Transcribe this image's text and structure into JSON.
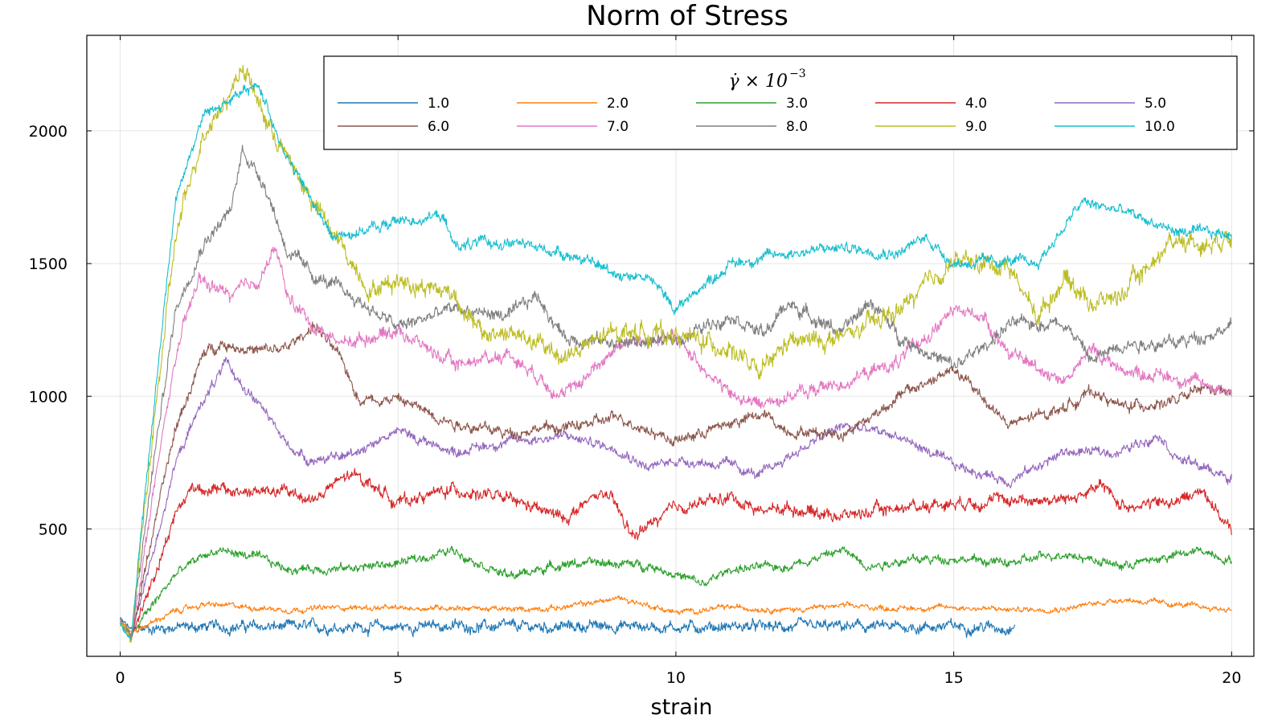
{
  "chart_data": {
    "type": "line",
    "title": "Norm of Stress",
    "xlabel": "strain",
    "ylabel": "",
    "xlim": [
      -0.6,
      20.4
    ],
    "ylim": [
      20,
      2360
    ],
    "xticks": [
      0,
      5,
      10,
      15,
      20
    ],
    "xtick_labels": [
      "0",
      "5",
      "10",
      "15",
      "20"
    ],
    "yticks": [
      500,
      1000,
      1500,
      2000
    ],
    "ytick_labels": [
      "500",
      "1000",
      "1500",
      "2000"
    ],
    "grid": true,
    "legend": {
      "placement": "top-right",
      "title": "γ̇ × 10",
      "title_exponent": "−3",
      "columns": 5
    },
    "series": [
      {
        "name": "1.0",
        "color": "#1f77b4",
        "noise": 20,
        "points": [
          [
            0,
            160
          ],
          [
            0.2,
            120
          ],
          [
            0.5,
            125
          ],
          [
            1,
            130
          ],
          [
            2,
            132
          ],
          [
            3,
            130
          ],
          [
            4,
            132
          ],
          [
            5,
            130
          ],
          [
            6,
            135
          ],
          [
            7,
            130
          ],
          [
            8,
            132
          ],
          [
            9,
            135
          ],
          [
            10,
            130
          ],
          [
            11,
            133
          ],
          [
            12,
            130
          ],
          [
            13,
            132
          ],
          [
            14,
            130
          ],
          [
            15,
            133
          ],
          [
            16,
            130
          ],
          [
            16.1,
            130
          ]
        ]
      },
      {
        "name": "2.0",
        "color": "#ff7f0e",
        "noise": 10,
        "points": [
          [
            0,
            160
          ],
          [
            0.2,
            110
          ],
          [
            0.6,
            150
          ],
          [
            1,
            190
          ],
          [
            1.5,
            215
          ],
          [
            2,
            210
          ],
          [
            3,
            195
          ],
          [
            4,
            205
          ],
          [
            5,
            200
          ],
          [
            6,
            205
          ],
          [
            7,
            195
          ],
          [
            8,
            205
          ],
          [
            9,
            240
          ],
          [
            10,
            185
          ],
          [
            11,
            205
          ],
          [
            12,
            195
          ],
          [
            13,
            210
          ],
          [
            14,
            200
          ],
          [
            15,
            205
          ],
          [
            16,
            195
          ],
          [
            17,
            200
          ],
          [
            18,
            235
          ],
          [
            19,
            215
          ],
          [
            20,
            195
          ]
        ]
      },
      {
        "name": "3.0",
        "color": "#2ca02c",
        "noise": 16,
        "points": [
          [
            0,
            150
          ],
          [
            0.2,
            100
          ],
          [
            0.5,
            190
          ],
          [
            1,
            330
          ],
          [
            1.5,
            400
          ],
          [
            1.8,
            420
          ],
          [
            2.5,
            390
          ],
          [
            3,
            350
          ],
          [
            4,
            350
          ],
          [
            5,
            370
          ],
          [
            6,
            420
          ],
          [
            7,
            320
          ],
          [
            8,
            370
          ],
          [
            9,
            370
          ],
          [
            9.6,
            360
          ],
          [
            10.5,
            290
          ],
          [
            11,
            350
          ],
          [
            12,
            360
          ],
          [
            13,
            420
          ],
          [
            13.5,
            360
          ],
          [
            14,
            380
          ],
          [
            15,
            390
          ],
          [
            16,
            370
          ],
          [
            17,
            410
          ],
          [
            18,
            360
          ],
          [
            19,
            400
          ],
          [
            19.5,
            420
          ],
          [
            20,
            380
          ]
        ]
      },
      {
        "name": "4.0",
        "color": "#d62728",
        "noise": 22,
        "points": [
          [
            0,
            150
          ],
          [
            0.2,
            95
          ],
          [
            0.6,
            320
          ],
          [
            1,
            560
          ],
          [
            1.3,
            660
          ],
          [
            2,
            640
          ],
          [
            3,
            640
          ],
          [
            3.5,
            610
          ],
          [
            4,
            690
          ],
          [
            4.3,
            700
          ],
          [
            5,
            600
          ],
          [
            6,
            650
          ],
          [
            7,
            610
          ],
          [
            8,
            540
          ],
          [
            8.7,
            640
          ],
          [
            9,
            560
          ],
          [
            9.2,
            470
          ],
          [
            10,
            580
          ],
          [
            11,
            620
          ],
          [
            11.5,
            570
          ],
          [
            12,
            580
          ],
          [
            13,
            550
          ],
          [
            14,
            580
          ],
          [
            15,
            600
          ],
          [
            16,
            610
          ],
          [
            17,
            610
          ],
          [
            17.7,
            660
          ],
          [
            18,
            590
          ],
          [
            19,
            600
          ],
          [
            19.5,
            650
          ],
          [
            20,
            480
          ]
        ]
      },
      {
        "name": "5.0",
        "color": "#9467bd",
        "noise": 18,
        "points": [
          [
            0,
            150
          ],
          [
            0.2,
            90
          ],
          [
            0.6,
            420
          ],
          [
            1,
            750
          ],
          [
            1.5,
            990
          ],
          [
            1.9,
            1120
          ],
          [
            2.5,
            970
          ],
          [
            3,
            820
          ],
          [
            3.4,
            760
          ],
          [
            4,
            770
          ],
          [
            5,
            870
          ],
          [
            6,
            790
          ],
          [
            7,
            830
          ],
          [
            8,
            850
          ],
          [
            9,
            800
          ],
          [
            9.5,
            730
          ],
          [
            10,
            760
          ],
          [
            11,
            740
          ],
          [
            11.5,
            700
          ],
          [
            12,
            770
          ],
          [
            13,
            890
          ],
          [
            14,
            850
          ],
          [
            15,
            740
          ],
          [
            16,
            680
          ],
          [
            17,
            790
          ],
          [
            18,
            790
          ],
          [
            18.7,
            860
          ],
          [
            19,
            770
          ],
          [
            20,
            690
          ]
        ]
      },
      {
        "name": "6.0",
        "color": "#8c564b",
        "noise": 20,
        "points": [
          [
            0,
            150
          ],
          [
            0.2,
            90
          ],
          [
            0.6,
            500
          ],
          [
            1,
            880
          ],
          [
            1.5,
            1160
          ],
          [
            1.8,
            1200
          ],
          [
            2.5,
            1170
          ],
          [
            3,
            1180
          ],
          [
            3.5,
            1270
          ],
          [
            4,
            1130
          ],
          [
            4.3,
            990
          ],
          [
            5,
            990
          ],
          [
            6,
            900
          ],
          [
            7,
            860
          ],
          [
            7.5,
            880
          ],
          [
            8,
            880
          ],
          [
            9,
            920
          ],
          [
            10,
            830
          ],
          [
            11,
            900
          ],
          [
            11.6,
            930
          ],
          [
            12,
            870
          ],
          [
            13,
            860
          ],
          [
            13.5,
            920
          ],
          [
            14,
            1000
          ],
          [
            15,
            1100
          ],
          [
            15.5,
            1000
          ],
          [
            16,
            890
          ],
          [
            17,
            960
          ],
          [
            17.5,
            1020
          ],
          [
            18,
            960
          ],
          [
            19,
            980
          ],
          [
            19.5,
            1030
          ],
          [
            20,
            1010
          ]
        ]
      },
      {
        "name": "7.0",
        "color": "#e377c2",
        "noise": 24,
        "points": [
          [
            0,
            150
          ],
          [
            0.2,
            90
          ],
          [
            0.6,
            640
          ],
          [
            1,
            1150
          ],
          [
            1.4,
            1440
          ],
          [
            2,
            1380
          ],
          [
            2.5,
            1440
          ],
          [
            2.8,
            1560
          ],
          [
            3,
            1380
          ],
          [
            3.5,
            1260
          ],
          [
            4,
            1200
          ],
          [
            5,
            1250
          ],
          [
            6,
            1120
          ],
          [
            7,
            1160
          ],
          [
            8,
            1000
          ],
          [
            9,
            1200
          ],
          [
            10,
            1220
          ],
          [
            11,
            1000
          ],
          [
            11.5,
            970
          ],
          [
            12,
            1000
          ],
          [
            13,
            1050
          ],
          [
            14,
            1130
          ],
          [
            15,
            1320
          ],
          [
            15.5,
            1310
          ],
          [
            16,
            1160
          ],
          [
            17,
            1060
          ],
          [
            17.5,
            1180
          ],
          [
            18,
            1100
          ],
          [
            19,
            1070
          ],
          [
            20,
            1020
          ]
        ]
      },
      {
        "name": "8.0",
        "color": "#7f7f7f",
        "noise": 24,
        "points": [
          [
            0,
            150
          ],
          [
            0.2,
            90
          ],
          [
            0.6,
            750
          ],
          [
            1,
            1330
          ],
          [
            1.5,
            1580
          ],
          [
            2,
            1700
          ],
          [
            2.2,
            1930
          ],
          [
            2.6,
            1800
          ],
          [
            3,
            1550
          ],
          [
            3.5,
            1450
          ],
          [
            4,
            1400
          ],
          [
            5,
            1260
          ],
          [
            6,
            1330
          ],
          [
            7,
            1300
          ],
          [
            7.5,
            1380
          ],
          [
            8,
            1220
          ],
          [
            9,
            1200
          ],
          [
            10,
            1210
          ],
          [
            11,
            1310
          ],
          [
            11.6,
            1230
          ],
          [
            12,
            1350
          ],
          [
            13,
            1240
          ],
          [
            13.5,
            1360
          ],
          [
            14,
            1230
          ],
          [
            15,
            1110
          ],
          [
            15.5,
            1180
          ],
          [
            16,
            1270
          ],
          [
            17,
            1280
          ],
          [
            17.5,
            1130
          ],
          [
            18,
            1200
          ],
          [
            19,
            1200
          ],
          [
            20,
            1260
          ]
        ]
      },
      {
        "name": "9.0",
        "color": "#bcbd22",
        "noise": 34,
        "points": [
          [
            0,
            150
          ],
          [
            0.2,
            90
          ],
          [
            0.6,
            880
          ],
          [
            1,
            1600
          ],
          [
            1.5,
            2000
          ],
          [
            2,
            2150
          ],
          [
            2.2,
            2250
          ],
          [
            2.6,
            2050
          ],
          [
            3,
            1900
          ],
          [
            3.5,
            1720
          ],
          [
            4,
            1560
          ],
          [
            4.5,
            1400
          ],
          [
            5,
            1440
          ],
          [
            6,
            1390
          ],
          [
            6.5,
            1230
          ],
          [
            7,
            1240
          ],
          [
            8,
            1150
          ],
          [
            9,
            1250
          ],
          [
            10,
            1230
          ],
          [
            11,
            1180
          ],
          [
            11.5,
            1080
          ],
          [
            12,
            1200
          ],
          [
            13,
            1220
          ],
          [
            14,
            1320
          ],
          [
            15,
            1510
          ],
          [
            16,
            1490
          ],
          [
            16.5,
            1300
          ],
          [
            17,
            1450
          ],
          [
            17.5,
            1350
          ],
          [
            18,
            1380
          ],
          [
            19,
            1600
          ],
          [
            19.5,
            1570
          ],
          [
            20,
            1610
          ]
        ]
      },
      {
        "name": "10.0",
        "color": "#17becf",
        "noise": 20,
        "points": [
          [
            0,
            150
          ],
          [
            0.2,
            90
          ],
          [
            0.6,
            950
          ],
          [
            1,
            1750
          ],
          [
            1.5,
            2060
          ],
          [
            2,
            2120
          ],
          [
            2.5,
            2170
          ],
          [
            3,
            1900
          ],
          [
            3.5,
            1720
          ],
          [
            3.8,
            1600
          ],
          [
            4,
            1610
          ],
          [
            4.5,
            1630
          ],
          [
            5,
            1660
          ],
          [
            5.8,
            1680
          ],
          [
            6,
            1570
          ],
          [
            7,
            1580
          ],
          [
            8,
            1540
          ],
          [
            9,
            1460
          ],
          [
            9.5,
            1450
          ],
          [
            10,
            1330
          ],
          [
            10.5,
            1420
          ],
          [
            11,
            1500
          ],
          [
            12,
            1540
          ],
          [
            13,
            1560
          ],
          [
            14,
            1540
          ],
          [
            14.5,
            1600
          ],
          [
            15,
            1500
          ],
          [
            16,
            1510
          ],
          [
            16.5,
            1500
          ],
          [
            17,
            1640
          ],
          [
            17.3,
            1730
          ],
          [
            18,
            1700
          ],
          [
            19,
            1620
          ],
          [
            20,
            1610
          ]
        ]
      }
    ]
  }
}
